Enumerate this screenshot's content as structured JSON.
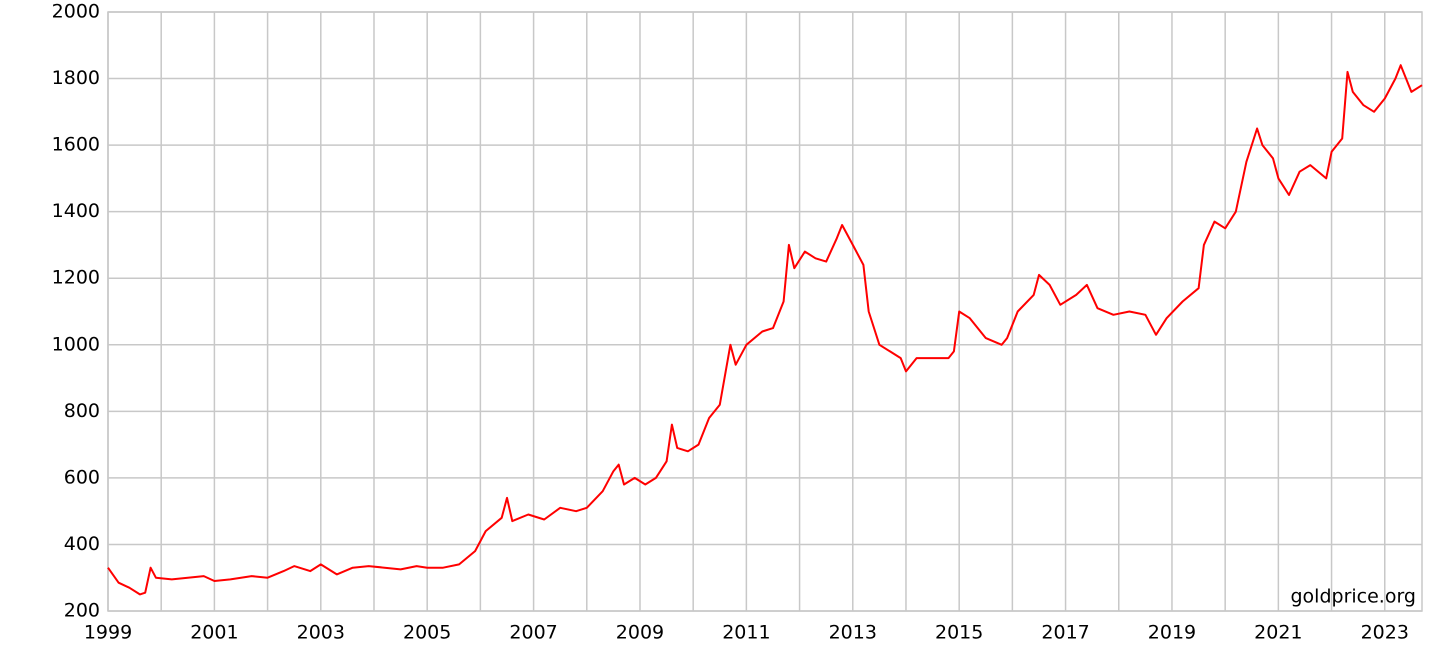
{
  "chart_data": {
    "type": "line",
    "annotation": "goldprice.org",
    "x": [
      1999.0,
      1999.2,
      1999.4,
      1999.6,
      1999.7,
      1999.8,
      1999.9,
      2000.2,
      2000.5,
      2000.8,
      2001.0,
      2001.3,
      2001.7,
      2002.0,
      2002.3,
      2002.5,
      2002.8,
      2003.0,
      2003.3,
      2003.6,
      2003.9,
      2004.2,
      2004.5,
      2004.8,
      2005.0,
      2005.3,
      2005.6,
      2005.9,
      2006.1,
      2006.4,
      2006.5,
      2006.6,
      2006.9,
      2007.2,
      2007.5,
      2007.8,
      2008.0,
      2008.3,
      2008.5,
      2008.6,
      2008.7,
      2008.9,
      2009.1,
      2009.3,
      2009.5,
      2009.6,
      2009.7,
      2009.9,
      2010.1,
      2010.3,
      2010.5,
      2010.7,
      2010.8,
      2011.0,
      2011.3,
      2011.5,
      2011.7,
      2011.8,
      2011.9,
      2012.1,
      2012.3,
      2012.5,
      2012.7,
      2012.8,
      2013.0,
      2013.2,
      2013.3,
      2013.5,
      2013.7,
      2013.9,
      2014.0,
      2014.2,
      2014.5,
      2014.8,
      2014.9,
      2015.0,
      2015.2,
      2015.5,
      2015.8,
      2015.9,
      2016.1,
      2016.4,
      2016.5,
      2016.7,
      2016.9,
      2017.2,
      2017.4,
      2017.6,
      2017.9,
      2018.2,
      2018.5,
      2018.7,
      2018.9,
      2019.2,
      2019.5,
      2019.6,
      2019.8,
      2020.0,
      2020.2,
      2020.4,
      2020.6,
      2020.7,
      2020.9,
      2021.0,
      2021.2,
      2021.4,
      2021.6,
      2021.9,
      2022.0,
      2022.2,
      2022.3,
      2022.4,
      2022.6,
      2022.8,
      2023.0,
      2023.2,
      2023.3,
      2023.5,
      2023.7
    ],
    "series": [
      {
        "color": "#ff0000",
        "values": [
          330,
          285,
          270,
          250,
          255,
          330,
          300,
          295,
          300,
          305,
          290,
          295,
          305,
          300,
          320,
          335,
          320,
          340,
          310,
          330,
          335,
          330,
          325,
          335,
          330,
          330,
          340,
          380,
          440,
          480,
          540,
          470,
          490,
          475,
          510,
          500,
          510,
          560,
          620,
          640,
          580,
          600,
          580,
          600,
          650,
          760,
          690,
          680,
          700,
          780,
          820,
          1000,
          940,
          1000,
          1040,
          1050,
          1130,
          1300,
          1230,
          1280,
          1260,
          1250,
          1320,
          1360,
          1300,
          1240,
          1100,
          1000,
          980,
          960,
          920,
          960,
          960,
          960,
          980,
          1100,
          1080,
          1020,
          1000,
          1020,
          1100,
          1150,
          1210,
          1180,
          1120,
          1150,
          1180,
          1110,
          1090,
          1100,
          1090,
          1030,
          1080,
          1130,
          1170,
          1300,
          1370,
          1350,
          1400,
          1550,
          1650,
          1600,
          1560,
          1500,
          1450,
          1520,
          1540,
          1500,
          1580,
          1620,
          1820,
          1760,
          1720,
          1700,
          1740,
          1800,
          1840,
          1760,
          1780
        ]
      }
    ],
    "xlim": [
      1999,
      2023.7
    ],
    "xticks": [
      1999,
      2001,
      2003,
      2005,
      2007,
      2009,
      2011,
      2013,
      2015,
      2017,
      2019,
      2021,
      2023
    ],
    "xgrid": [
      1999,
      2000,
      2001,
      2002,
      2003,
      2004,
      2005,
      2006,
      2007,
      2008,
      2009,
      2010,
      2011,
      2012,
      2013,
      2014,
      2015,
      2016,
      2017,
      2018,
      2019,
      2020,
      2021,
      2022,
      2023
    ],
    "ylim": [
      200,
      2000
    ],
    "yticks": [
      200,
      400,
      600,
      800,
      1000,
      1200,
      1400,
      1600,
      1800,
      2000
    ],
    "grid": true
  }
}
